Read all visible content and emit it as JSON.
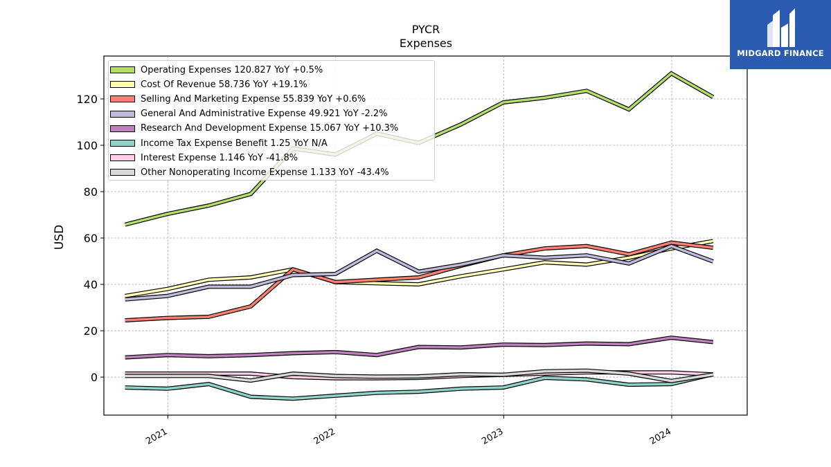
{
  "brand": {
    "name": "MIDGARD FINANCE",
    "logo_icon": "midgard-logo-icon",
    "background": "#2a5bb0"
  },
  "chart_data": {
    "type": "line",
    "title": "PYCR",
    "subtitle": "Expenses",
    "xlabel": "",
    "ylabel": "USD",
    "ylim": [
      -16.4,
      138.5
    ],
    "xlim": [
      "2020-08-15",
      "2024-06-13"
    ],
    "x_ticks": [
      "2021-01-01",
      "2022-01-01",
      "2023-01-01",
      "2024-01-01"
    ],
    "x_tick_labels": [
      "2021",
      "2022",
      "2023",
      "2024"
    ],
    "y_ticks": [
      0,
      20,
      40,
      60,
      80,
      100,
      120
    ],
    "grid": true,
    "legend_position": "top-left",
    "x": [
      "2020-09-30",
      "2020-12-31",
      "2021-03-31",
      "2021-06-30",
      "2021-09-30",
      "2021-12-31",
      "2022-03-31",
      "2022-06-30",
      "2022-09-30",
      "2022-12-31",
      "2023-03-31",
      "2023-06-30",
      "2023-09-30",
      "2023-12-31",
      "2024-03-31"
    ],
    "series": [
      {
        "name": "Operating Expenses",
        "legend": "Operating Expenses  120.827 YoY +0.5%",
        "color": "#b3de69",
        "values": [
          65.8,
          70.4,
          74.0,
          79.0,
          98.6,
          96.0,
          105.0,
          101.0,
          109.0,
          118.5,
          120.5,
          123.5,
          115.5,
          131.0,
          120.8
        ]
      },
      {
        "name": "Cost Of Revenue",
        "legend": "Cost Of Revenue  58.736 YoY +19.1%",
        "color": "#ffffb3",
        "values": [
          35.0,
          38.0,
          42.0,
          43.0,
          46.5,
          41.0,
          40.5,
          40.0,
          43.5,
          46.5,
          49.5,
          48.5,
          51.5,
          55.5,
          58.7
        ]
      },
      {
        "name": "Selling And Marketing Expense",
        "legend": "Selling And Marketing Expense  55.839 YoY +0.6%",
        "color": "#fb8072",
        "values": [
          24.5,
          25.5,
          26.0,
          30.5,
          46.5,
          41.0,
          42.0,
          43.0,
          48.0,
          52.5,
          55.5,
          56.5,
          53.0,
          58.0,
          55.8
        ]
      },
      {
        "name": "General And Administrative Expense",
        "legend": "General And Administrative Expense  49.921 YoY -2.2%",
        "color": "#bebada",
        "values": [
          33.5,
          35.0,
          39.0,
          39.0,
          44.0,
          44.5,
          54.5,
          45.5,
          48.5,
          52.5,
          51.5,
          52.5,
          49.0,
          56.5,
          49.9
        ]
      },
      {
        "name": "Research And Development Expense",
        "legend": "Research And Development Expense  15.067 YoY +10.3%",
        "color": "#bc80bd",
        "values": [
          8.5,
          9.5,
          9.0,
          9.5,
          10.3,
          10.8,
          9.5,
          13.0,
          12.8,
          14.0,
          13.8,
          14.5,
          14.2,
          17.0,
          15.1
        ]
      },
      {
        "name": "Income Tax Expense Benefit",
        "legend": "Income Tax Expense Benefit  1.25 YoY N/A",
        "color": "#8dd3c7",
        "values": [
          -4.5,
          -5.0,
          -3.0,
          -8.5,
          -9.3,
          -8.0,
          -6.8,
          -6.3,
          -5.0,
          -4.5,
          -0.3,
          -1.0,
          -3.3,
          -3.0,
          1.25
        ]
      },
      {
        "name": "Interest Expense",
        "legend": "Interest Expense  1.146 YoY -41.8%",
        "color": "#fccde5",
        "values": [
          1.5,
          1.5,
          1.5,
          1.5,
          0.0,
          -0.5,
          -0.5,
          -0.3,
          0.5,
          1.0,
          1.5,
          2.0,
          2.0,
          2.0,
          1.146
        ]
      },
      {
        "name": "Other Nonoperating Income Expense",
        "legend": "Other Nonoperating Income Expense  1.133 YoY -43.4%",
        "color": "#d9d9d9",
        "values": [
          0.5,
          0.5,
          0.5,
          -1.5,
          1.5,
          0.5,
          0.2,
          0.3,
          1.2,
          1.0,
          2.5,
          2.8,
          1.5,
          -1.7,
          1.133
        ]
      }
    ]
  }
}
